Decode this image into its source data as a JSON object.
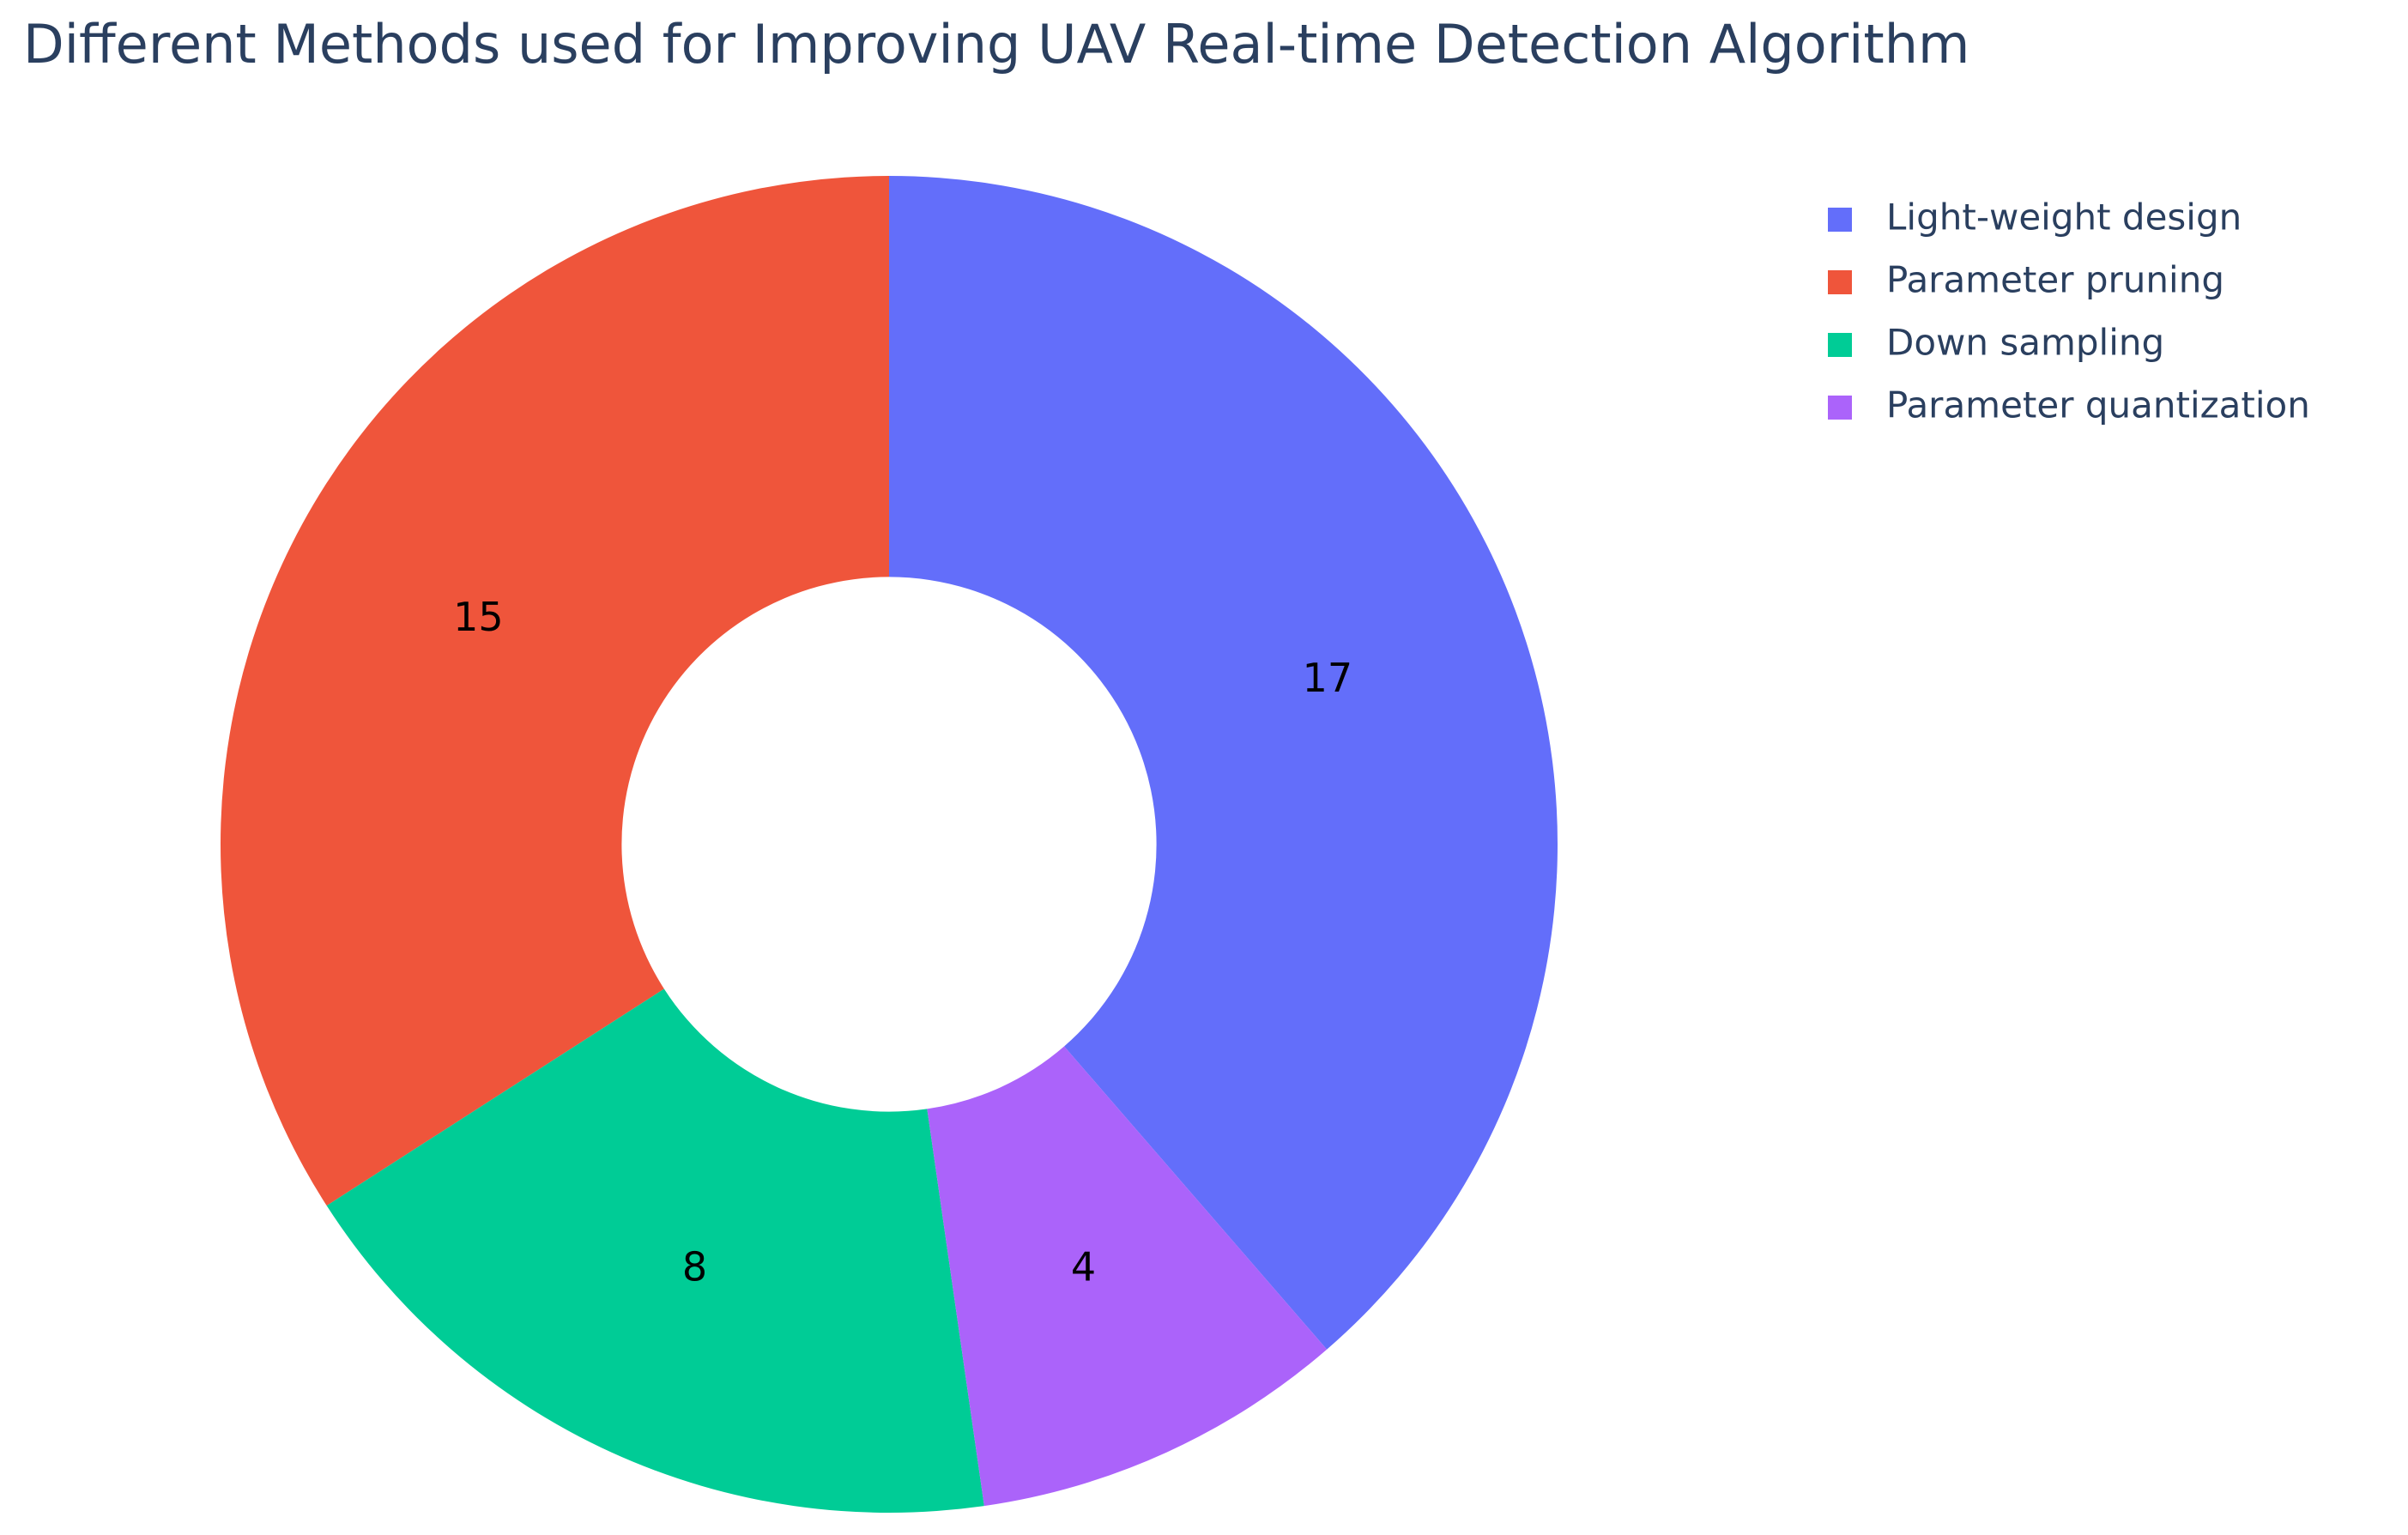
{
  "chart_data": {
    "type": "pie",
    "title": "Different Methods used for Improving UAV Real-time Detection Algorithm",
    "categories": [
      "Light-weight design",
      "Parameter pruning",
      "Down sampling",
      "Parameter quantization"
    ],
    "values": [
      17,
      15,
      8,
      4
    ],
    "colors": [
      "#636efa",
      "#ef553b",
      "#00cc96",
      "#ab63fa"
    ],
    "hole": 0.4,
    "direction": "counterclockwise",
    "legend": "top-right"
  }
}
